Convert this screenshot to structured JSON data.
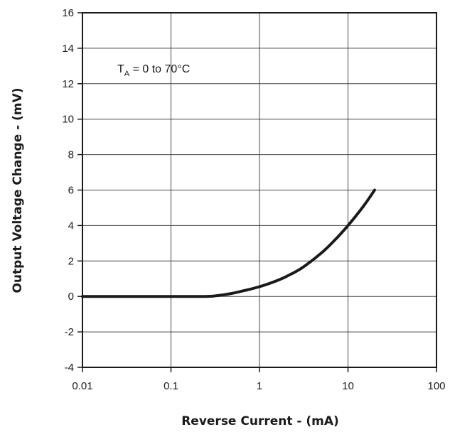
{
  "chart_data": {
    "type": "line",
    "xscale": "log",
    "xlim": [
      0.01,
      100
    ],
    "ylim": [
      -4,
      16
    ],
    "xticks": [
      "0.01",
      "0.1",
      "1",
      "10",
      "100"
    ],
    "yticks": [
      "-4",
      "-2",
      "0",
      "2",
      "4",
      "6",
      "8",
      "10",
      "12",
      "14",
      "16"
    ],
    "xlabel": "Reverse Current - (mA)",
    "ylabel": "Output Voltage Change - (mV)",
    "grid": true,
    "annotation": {
      "main": "T",
      "subscript": "A",
      "rest": " = 0 to 70°C"
    },
    "series": [
      {
        "color": "#1a1a1a",
        "x": [
          0.01,
          0.05,
          0.1,
          0.2,
          0.25,
          0.3,
          0.4,
          0.5,
          0.7,
          1,
          1.5,
          2,
          3,
          5,
          7,
          10,
          15,
          20
        ],
        "y": [
          0,
          0,
          0,
          0,
          0,
          0.02,
          0.1,
          0.18,
          0.35,
          0.55,
          0.85,
          1.12,
          1.6,
          2.45,
          3.15,
          4.0,
          5.1,
          6.0
        ]
      }
    ]
  }
}
